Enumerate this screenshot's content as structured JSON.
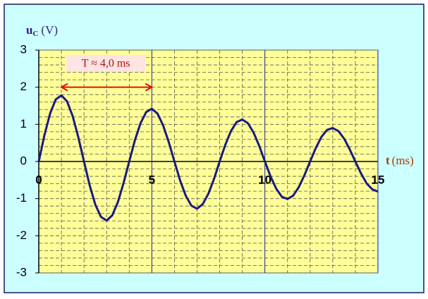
{
  "chart_data": {
    "type": "line",
    "y_label_symbol": "u",
    "y_label_subscript": "C",
    "y_label_unit": "(V)",
    "x_label_symbol": "t",
    "x_label_unit": "(ms)",
    "xlim": [
      0,
      15
    ],
    "ylim": [
      -3,
      3
    ],
    "xticks": [
      0,
      5,
      10,
      15
    ],
    "yticks": [
      -3,
      -2,
      -1,
      0,
      1,
      2,
      3
    ],
    "x_minor_ticks": [
      1,
      2,
      3,
      4,
      6,
      7,
      8,
      9,
      11,
      12,
      13,
      14
    ],
    "y_minor_ticks": [
      -2.8,
      -2.6,
      -2.4,
      -2.2,
      -1.8,
      -1.6,
      -1.4,
      -1.2,
      -0.8,
      -0.6,
      -0.4,
      -0.2,
      0.2,
      0.4,
      0.6,
      0.8,
      1.2,
      1.4,
      1.6,
      1.8,
      2.2,
      2.4,
      2.6,
      2.8
    ],
    "grid": true,
    "x": [
      0,
      0.25,
      0.5,
      0.75,
      1,
      1.25,
      1.5,
      1.75,
      2,
      2.25,
      2.5,
      2.75,
      3,
      3.25,
      3.5,
      3.75,
      4,
      4.25,
      4.5,
      4.75,
      5,
      5.25,
      5.5,
      5.75,
      6,
      6.25,
      6.5,
      6.75,
      7,
      7.25,
      7.5,
      7.75,
      8,
      8.25,
      8.5,
      8.75,
      9,
      9.25,
      9.5,
      9.75,
      10,
      10.25,
      10.5,
      10.75,
      11,
      11.25,
      11.5,
      11.75,
      12,
      12.25,
      12.5,
      12.75,
      13,
      13.25,
      13.5,
      13.75,
      14,
      14.25,
      14.5,
      14.75,
      15
    ],
    "series": [
      {
        "color": "#1a1a80",
        "values": [
          0,
          0.71,
          1.29,
          1.67,
          1.78,
          1.62,
          1.22,
          0.65,
          0,
          -0.64,
          -1.16,
          -1.49,
          -1.59,
          -1.45,
          -1.09,
          -0.58,
          0,
          0.57,
          1.03,
          1.33,
          1.42,
          1.29,
          0.97,
          0.52,
          0,
          -0.51,
          -0.92,
          -1.19,
          -1.27,
          -1.15,
          -0.87,
          -0.47,
          0,
          0.45,
          0.82,
          1.06,
          1.13,
          1.03,
          0.78,
          0.42,
          0,
          -0.4,
          -0.73,
          -0.95,
          -1.01,
          -0.92,
          -0.69,
          -0.37,
          0,
          0.36,
          0.66,
          0.85,
          0.9,
          0.82,
          0.62,
          0.33,
          0,
          -0.32,
          -0.59,
          -0.75,
          -0.81
        ]
      }
    ],
    "annotation": {
      "text": "T ≈ 4,0 ms",
      "x_start": 1,
      "x_end": 5,
      "y": 2,
      "color": "#e01010"
    }
  }
}
